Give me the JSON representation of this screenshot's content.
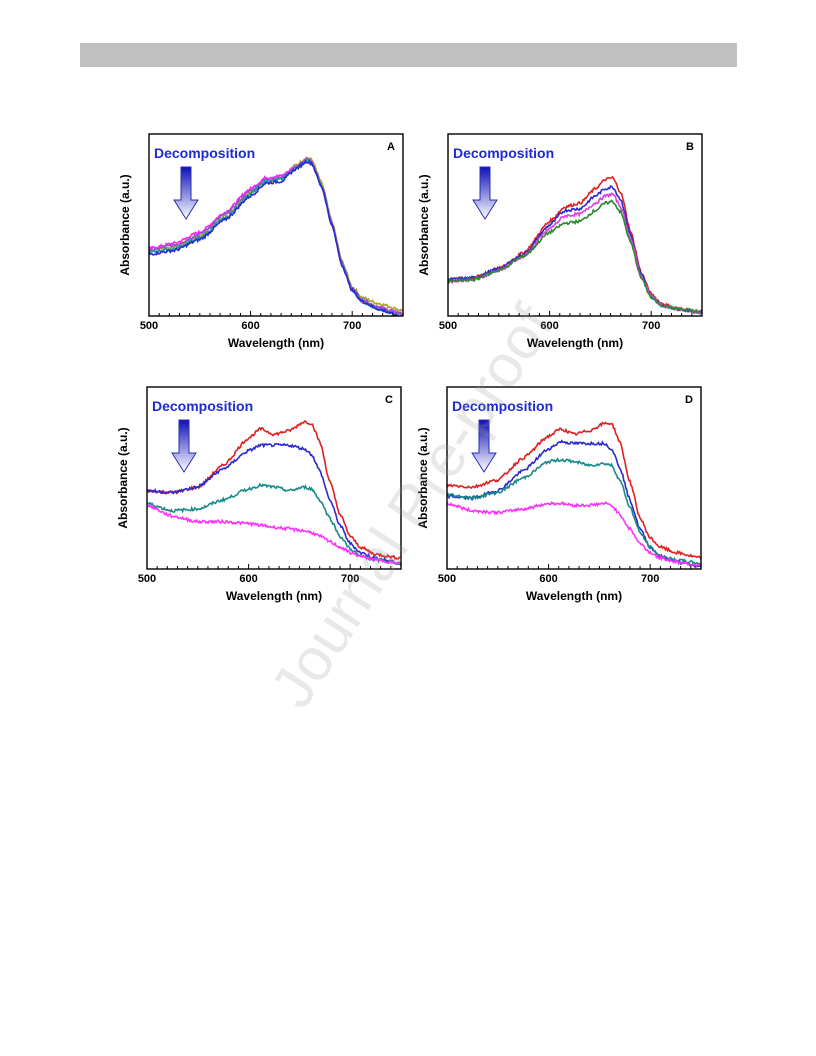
{
  "page": {
    "watermark": "Journal Pre-proof"
  },
  "colors": {
    "header_bar": "#c0c0c0",
    "annotation_text": "#1e2ad6",
    "arrow_top": "#1010b8",
    "arrow_bottom": "#ffffff",
    "arrow_stroke": "#2430b0"
  },
  "chart_data": [
    {
      "type": "line",
      "panel_label": "A",
      "annotation": "Decomposition",
      "xlabel": "Wavelength (nm)",
      "ylabel": "Absorbance (a.u.)",
      "xlim": [
        500,
        750
      ],
      "ylim": [
        0,
        1
      ],
      "xticks": [
        500,
        600,
        700
      ],
      "x": [
        500,
        525,
        550,
        575,
        600,
        615,
        630,
        645,
        655,
        660,
        670,
        680,
        690,
        700,
        710,
        725,
        750
      ],
      "series": [
        {
          "color": "#b0a420",
          "values": [
            0.36,
            0.38,
            0.44,
            0.55,
            0.68,
            0.74,
            0.76,
            0.83,
            0.87,
            0.86,
            0.73,
            0.52,
            0.3,
            0.16,
            0.1,
            0.07,
            0.03
          ]
        },
        {
          "color": "#ff20ff",
          "values": [
            0.37,
            0.4,
            0.46,
            0.57,
            0.7,
            0.76,
            0.77,
            0.82,
            0.85,
            0.84,
            0.71,
            0.5,
            0.28,
            0.14,
            0.08,
            0.05,
            0.01
          ]
        },
        {
          "color": "#9a4fd0",
          "values": [
            0.36,
            0.39,
            0.45,
            0.56,
            0.69,
            0.75,
            0.76,
            0.82,
            0.86,
            0.85,
            0.72,
            0.51,
            0.29,
            0.15,
            0.09,
            0.05,
            0.01
          ]
        },
        {
          "color": "#1c9aa0",
          "values": [
            0.35,
            0.37,
            0.43,
            0.54,
            0.67,
            0.74,
            0.75,
            0.81,
            0.85,
            0.84,
            0.71,
            0.5,
            0.28,
            0.14,
            0.08,
            0.04,
            -0.01
          ]
        },
        {
          "color": "#2a2ad0",
          "values": [
            0.34,
            0.36,
            0.42,
            0.53,
            0.66,
            0.73,
            0.74,
            0.81,
            0.85,
            0.84,
            0.71,
            0.5,
            0.28,
            0.14,
            0.08,
            0.04,
            -0.01
          ]
        }
      ]
    },
    {
      "type": "line",
      "panel_label": "B",
      "annotation": "Decomposition",
      "xlabel": "Wavelength (nm)",
      "ylabel": "Absorbance (a.u.)",
      "xlim": [
        500,
        750
      ],
      "ylim": [
        0,
        1
      ],
      "xticks": [
        500,
        600,
        700
      ],
      "x": [
        500,
        525,
        550,
        575,
        600,
        615,
        630,
        645,
        655,
        662,
        670,
        680,
        690,
        700,
        710,
        725,
        750
      ],
      "series": [
        {
          "color": "#e02020",
          "values": [
            0.2,
            0.21,
            0.26,
            0.35,
            0.52,
            0.6,
            0.62,
            0.7,
            0.75,
            0.76,
            0.68,
            0.46,
            0.24,
            0.12,
            0.07,
            0.04,
            0.02
          ]
        },
        {
          "color": "#2a2ad0",
          "values": [
            0.2,
            0.21,
            0.26,
            0.34,
            0.5,
            0.58,
            0.59,
            0.66,
            0.7,
            0.71,
            0.64,
            0.44,
            0.23,
            0.11,
            0.06,
            0.04,
            0.02
          ]
        },
        {
          "color": "#e040e0",
          "values": [
            0.19,
            0.2,
            0.25,
            0.33,
            0.48,
            0.55,
            0.56,
            0.62,
            0.66,
            0.67,
            0.6,
            0.42,
            0.22,
            0.11,
            0.06,
            0.04,
            0.02
          ]
        },
        {
          "color": "#2a8a30",
          "values": [
            0.19,
            0.2,
            0.25,
            0.33,
            0.46,
            0.51,
            0.52,
            0.58,
            0.62,
            0.63,
            0.57,
            0.4,
            0.21,
            0.1,
            0.06,
            0.04,
            0.02
          ]
        }
      ]
    },
    {
      "type": "line",
      "panel_label": "C",
      "annotation": "Decomposition",
      "xlabel": "Wavelength (nm)",
      "ylabel": "Absorbance (a.u.)",
      "xlim": [
        500,
        750
      ],
      "ylim": [
        0,
        1
      ],
      "xticks": [
        500,
        600,
        700
      ],
      "x": [
        500,
        525,
        550,
        575,
        600,
        612,
        625,
        640,
        655,
        662,
        670,
        680,
        690,
        700,
        710,
        725,
        750
      ],
      "series": [
        {
          "color": "#e02020",
          "values": [
            0.43,
            0.42,
            0.45,
            0.57,
            0.72,
            0.77,
            0.74,
            0.76,
            0.81,
            0.8,
            0.7,
            0.48,
            0.3,
            0.18,
            0.12,
            0.08,
            0.06
          ]
        },
        {
          "color": "#2a2ad0",
          "values": [
            0.43,
            0.42,
            0.45,
            0.55,
            0.65,
            0.68,
            0.68,
            0.68,
            0.66,
            0.63,
            0.54,
            0.38,
            0.24,
            0.14,
            0.09,
            0.06,
            0.03
          ]
        },
        {
          "color": "#1c8a88",
          "values": [
            0.36,
            0.32,
            0.33,
            0.38,
            0.44,
            0.46,
            0.45,
            0.43,
            0.45,
            0.44,
            0.38,
            0.28,
            0.18,
            0.11,
            0.07,
            0.05,
            0.03
          ]
        },
        {
          "color": "#ff30ff",
          "values": [
            0.35,
            0.29,
            0.26,
            0.26,
            0.25,
            0.24,
            0.23,
            0.22,
            0.21,
            0.2,
            0.18,
            0.15,
            0.12,
            0.09,
            0.07,
            0.05,
            0.03
          ]
        }
      ]
    },
    {
      "type": "line",
      "panel_label": "D",
      "annotation": "Decomposition",
      "xlabel": "Wavelength (nm)",
      "ylabel": "Absorbance (a.u.)",
      "xlim": [
        500,
        750
      ],
      "ylim": [
        0,
        1
      ],
      "xticks": [
        500,
        600,
        700
      ],
      "x": [
        500,
        525,
        550,
        575,
        600,
        612,
        625,
        640,
        655,
        662,
        670,
        680,
        690,
        700,
        710,
        725,
        750
      ],
      "series": [
        {
          "color": "#e02020",
          "values": [
            0.46,
            0.45,
            0.49,
            0.61,
            0.73,
            0.77,
            0.74,
            0.76,
            0.8,
            0.8,
            0.7,
            0.48,
            0.28,
            0.17,
            0.12,
            0.09,
            0.06
          ]
        },
        {
          "color": "#2a2ad0",
          "values": [
            0.4,
            0.39,
            0.43,
            0.54,
            0.66,
            0.7,
            0.69,
            0.69,
            0.69,
            0.66,
            0.56,
            0.38,
            0.22,
            0.12,
            0.07,
            0.04,
            0.01
          ]
        },
        {
          "color": "#1c8a88",
          "values": [
            0.41,
            0.39,
            0.42,
            0.5,
            0.59,
            0.6,
            0.59,
            0.57,
            0.58,
            0.57,
            0.49,
            0.34,
            0.2,
            0.12,
            0.07,
            0.05,
            0.03
          ]
        },
        {
          "color": "#ff30ff",
          "values": [
            0.36,
            0.32,
            0.31,
            0.33,
            0.36,
            0.36,
            0.35,
            0.35,
            0.36,
            0.35,
            0.3,
            0.22,
            0.14,
            0.09,
            0.06,
            0.04,
            0.02
          ]
        }
      ]
    }
  ]
}
